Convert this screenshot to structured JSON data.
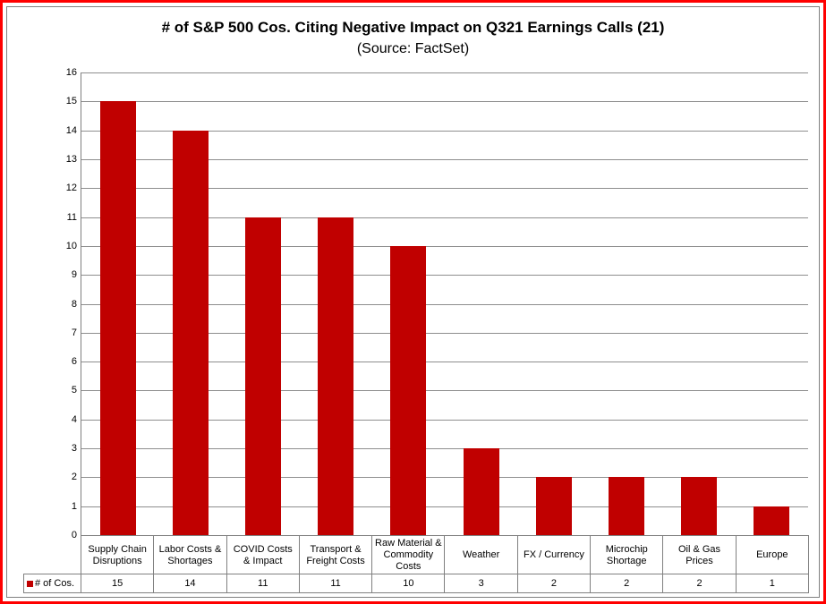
{
  "frame": {
    "outer_border_color": "#FF0000",
    "inner_border_color": "#808080",
    "background": "#ffffff"
  },
  "chart_data": {
    "type": "bar",
    "title": "# of S&P 500 Cos. Citing Negative Impact on Q321 Earnings Calls (21)",
    "subtitle": "(Source: FactSet)",
    "categories": [
      "Supply Chain Disruptions",
      "Labor Costs & Shortages",
      "COVID Costs & Impact",
      "Transport & Freight Costs",
      "Raw Material & Commodity Costs",
      "Weather",
      "FX / Currency",
      "Microchip Shortage",
      "Oil & Gas Prices",
      "Europe"
    ],
    "series": [
      {
        "name": "# of Cos.",
        "color": "#C00000",
        "values": [
          15,
          14,
          11,
          11,
          10,
          3,
          2,
          2,
          2,
          1
        ]
      }
    ],
    "ylabel": "",
    "xlabel": "",
    "ylim": [
      0,
      16
    ],
    "ytick_step": 1,
    "grid": true,
    "gridline_color": "#8e8e8e",
    "legend_position": "data-table-stub",
    "data_table_shown": true
  }
}
